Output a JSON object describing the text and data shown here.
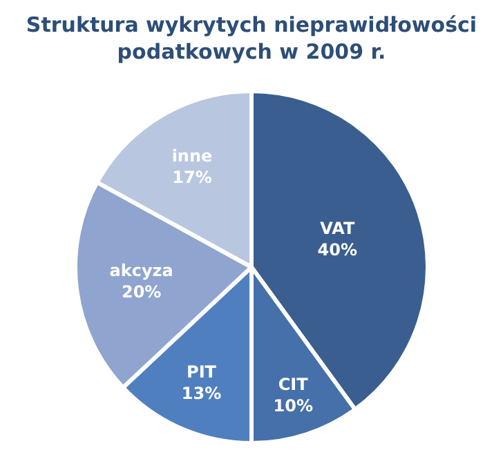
{
  "chart_data": {
    "type": "pie",
    "title": "Struktura wykrytych nieprawidłowości\npodatkowych w 2009 r.",
    "categories": [
      "VAT",
      "CIT",
      "PIT",
      "akcyza",
      "inne"
    ],
    "values": [
      40,
      10,
      13,
      20,
      17
    ],
    "colors": [
      "#3a5e8f",
      "#4570aa",
      "#4f7fbf",
      "#8fa4cf",
      "#b9c6e0"
    ],
    "value_labels": [
      "40%",
      "10%",
      "13%",
      "20%",
      "17%"
    ],
    "legend": false
  }
}
